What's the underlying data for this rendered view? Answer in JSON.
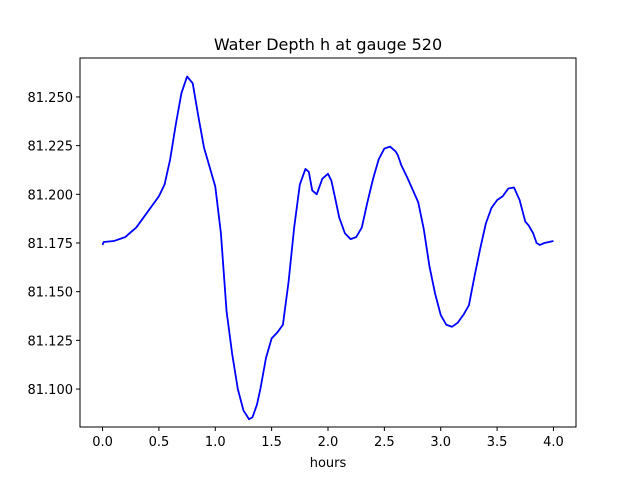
{
  "chart_data": {
    "type": "line",
    "title": "Water Depth h at gauge 520",
    "xlabel": "hours",
    "ylabel": "",
    "xlim": [
      -0.2,
      4.2
    ],
    "ylim": [
      81.0805,
      81.27
    ],
    "xticks": [
      0.0,
      0.5,
      1.0,
      1.5,
      2.0,
      2.5,
      3.0,
      3.5,
      4.0
    ],
    "xtick_labels": [
      "0.0",
      "0.5",
      "1.0",
      "1.5",
      "2.0",
      "2.5",
      "3.0",
      "3.5",
      "4.0"
    ],
    "yticks": [
      81.1,
      81.125,
      81.15,
      81.175,
      81.2,
      81.225,
      81.25
    ],
    "ytick_labels": [
      "81.100",
      "81.125",
      "81.150",
      "81.175",
      "81.200",
      "81.225",
      "81.250"
    ],
    "grid": false,
    "series": [
      {
        "color": "#0000ff",
        "x": [
          0.0,
          0.01,
          0.1,
          0.2,
          0.3,
          0.4,
          0.5,
          0.55,
          0.6,
          0.65,
          0.7,
          0.75,
          0.8,
          0.85,
          0.9,
          0.95,
          1.0,
          1.05,
          1.1,
          1.15,
          1.2,
          1.25,
          1.3,
          1.33,
          1.37,
          1.4,
          1.45,
          1.5,
          1.55,
          1.6,
          1.65,
          1.7,
          1.75,
          1.8,
          1.83,
          1.86,
          1.9,
          1.95,
          2.0,
          2.03,
          2.06,
          2.1,
          2.15,
          2.2,
          2.25,
          2.3,
          2.35,
          2.4,
          2.45,
          2.5,
          2.55,
          2.6,
          2.62,
          2.65,
          2.7,
          2.8,
          2.85,
          2.9,
          2.95,
          3.0,
          3.05,
          3.1,
          3.15,
          3.2,
          3.25,
          3.3,
          3.35,
          3.4,
          3.45,
          3.5,
          3.55,
          3.6,
          3.65,
          3.7,
          3.75,
          3.78,
          3.82,
          3.85,
          3.88,
          3.92,
          3.96,
          4.0
        ],
        "y": [
          81.174,
          81.1755,
          81.176,
          81.178,
          81.183,
          81.191,
          81.199,
          81.205,
          81.218,
          81.236,
          81.252,
          81.2605,
          81.257,
          81.24,
          81.224,
          81.214,
          81.204,
          81.18,
          81.14,
          81.118,
          81.1,
          81.089,
          81.0845,
          81.0855,
          81.092,
          81.1,
          81.116,
          81.126,
          81.129,
          81.133,
          81.155,
          81.183,
          81.205,
          81.213,
          81.2115,
          81.202,
          81.2,
          81.208,
          81.2105,
          81.207,
          81.199,
          81.188,
          81.18,
          81.177,
          81.178,
          81.183,
          81.196,
          81.208,
          81.218,
          81.2235,
          81.2245,
          81.222,
          81.22,
          81.215,
          81.209,
          81.196,
          81.182,
          81.163,
          81.149,
          81.138,
          81.133,
          81.132,
          81.134,
          81.138,
          81.143,
          81.158,
          81.172,
          81.185,
          81.193,
          81.197,
          81.199,
          81.203,
          81.2035,
          81.197,
          81.186,
          81.184,
          81.18,
          81.175,
          81.174,
          81.175,
          81.1755,
          81.176
        ]
      }
    ]
  }
}
